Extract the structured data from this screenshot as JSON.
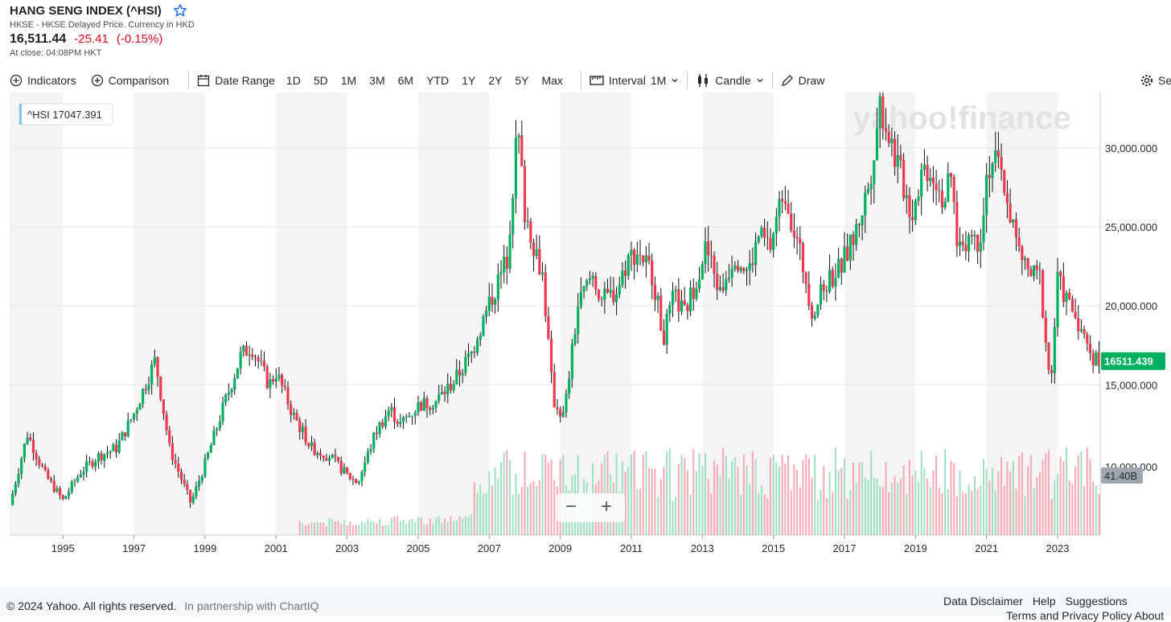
{
  "header": {
    "title": "HANG SENG INDEX (^HSI)",
    "subtitle": "HKSE - HKSE Delayed Price. Currency in HKD",
    "price": "16,511.44",
    "change": "-25.41",
    "change_pct": "(-0.15%)",
    "close_note": "At close: 04:08PM HKT"
  },
  "toolbar": {
    "indicators": "Indicators",
    "comparison": "Comparison",
    "date_range": "Date Range",
    "ranges": [
      "1D",
      "5D",
      "1M",
      "3M",
      "6M",
      "YTD",
      "1Y",
      "2Y",
      "5Y",
      "Max"
    ],
    "interval_label": "Interval",
    "interval_value": "1M",
    "chart_type": "Candle",
    "draw": "Draw",
    "settings": "Se"
  },
  "colors": {
    "up": "#00b061",
    "down": "#f0384f",
    "accent": "#0f69ff",
    "price_tag": "#00b061",
    "vol_tag": "#a0a6ad"
  },
  "chart_data": {
    "type": "candlestick",
    "symbol_label": "^HSI 17047.391",
    "watermark": "yahoo!finance",
    "current_price_tag": "16511.439",
    "volume_tag": "41.40B",
    "y_ticks": [
      15000,
      20000,
      25000,
      30000
    ],
    "y_tick_labels": [
      "15,000.000",
      "20,000.000",
      "25,000.000",
      "30,000.000"
    ],
    "cut_tick_label": "10,000.000",
    "ylim": [
      5500,
      33500
    ],
    "x_range": [
      1993.5,
      2024.2
    ],
    "x_ticks": [
      "1995",
      "1997",
      "1999",
      "2001",
      "2003",
      "2005",
      "2007",
      "2009",
      "2011",
      "2013",
      "2015",
      "2017",
      "2019",
      "2021",
      "2023"
    ],
    "shaded_bands": [
      [
        1993.5,
        1995
      ],
      [
        1997,
        1999
      ],
      [
        2001,
        2003
      ],
      [
        2005,
        2007
      ],
      [
        2009,
        2011
      ],
      [
        2013,
        2015
      ],
      [
        2017,
        2019
      ],
      [
        2021,
        2023
      ]
    ],
    "anchors": [
      [
        1993.5,
        7400
      ],
      [
        1994.0,
        11900
      ],
      [
        1994.5,
        9300
      ],
      [
        1995.0,
        7700
      ],
      [
        1995.5,
        9500
      ],
      [
        1996.0,
        10500
      ],
      [
        1996.5,
        11000
      ],
      [
        1997.0,
        13200
      ],
      [
        1997.6,
        16600
      ],
      [
        1998.0,
        11000
      ],
      [
        1998.6,
        7500
      ],
      [
        1999.0,
        10000
      ],
      [
        1999.5,
        13500
      ],
      [
        2000.0,
        16800
      ],
      [
        2000.3,
        17500
      ],
      [
        2000.8,
        15000
      ],
      [
        2001.0,
        15800
      ],
      [
        2001.5,
        13000
      ],
      [
        2002.0,
        11000
      ],
      [
        2002.5,
        10500
      ],
      [
        2003.0,
        9300
      ],
      [
        2003.3,
        8800
      ],
      [
        2003.8,
        12000
      ],
      [
        2004.2,
        13500
      ],
      [
        2004.5,
        12500
      ],
      [
        2005.0,
        13700
      ],
      [
        2005.5,
        14000
      ],
      [
        2006.0,
        15200
      ],
      [
        2006.5,
        17000
      ],
      [
        2007.0,
        20100
      ],
      [
        2007.5,
        23000
      ],
      [
        2007.8,
        31300
      ],
      [
        2008.0,
        26000
      ],
      [
        2008.5,
        22000
      ],
      [
        2008.8,
        14000
      ],
      [
        2009.1,
        13000
      ],
      [
        2009.5,
        20000
      ],
      [
        2009.9,
        22000
      ],
      [
        2010.2,
        20300
      ],
      [
        2010.6,
        21000
      ],
      [
        2010.9,
        23000
      ],
      [
        2011.2,
        23500
      ],
      [
        2011.6,
        22000
      ],
      [
        2011.9,
        18000
      ],
      [
        2012.2,
        20600
      ],
      [
        2012.5,
        19500
      ],
      [
        2012.8,
        21500
      ],
      [
        2013.1,
        23700
      ],
      [
        2013.5,
        20800
      ],
      [
        2013.9,
        23300
      ],
      [
        2014.3,
        22100
      ],
      [
        2014.6,
        24500
      ],
      [
        2014.9,
        23600
      ],
      [
        2015.3,
        27600
      ],
      [
        2015.6,
        24600
      ],
      [
        2015.9,
        21900
      ],
      [
        2016.1,
        19500
      ],
      [
        2016.5,
        21500
      ],
      [
        2016.9,
        22500
      ],
      [
        2017.3,
        24500
      ],
      [
        2017.7,
        27800
      ],
      [
        2018.0,
        32900
      ],
      [
        2018.5,
        28900
      ],
      [
        2018.9,
        25800
      ],
      [
        2019.2,
        28800
      ],
      [
        2019.5,
        28500
      ],
      [
        2019.8,
        26700
      ],
      [
        2020.0,
        28000
      ],
      [
        2020.2,
        23600
      ],
      [
        2020.5,
        24500
      ],
      [
        2020.8,
        24100
      ],
      [
        2021.0,
        28300
      ],
      [
        2021.2,
        29400
      ],
      [
        2021.5,
        27600
      ],
      [
        2021.9,
        23400
      ],
      [
        2022.2,
        22000
      ],
      [
        2022.5,
        21800
      ],
      [
        2022.8,
        14700
      ],
      [
        2023.0,
        21600
      ],
      [
        2023.3,
        20200
      ],
      [
        2023.6,
        19000
      ],
      [
        2023.8,
        17500
      ],
      [
        2024.1,
        16511
      ]
    ]
  },
  "footer": {
    "copyright": "© 2024 Yahoo. All rights reserved.",
    "partner": "In partnership with ChartIQ",
    "links": [
      "Data Disclaimer",
      "Help",
      "Suggestions"
    ],
    "links2": "Terms and Privacy Policy  About"
  }
}
